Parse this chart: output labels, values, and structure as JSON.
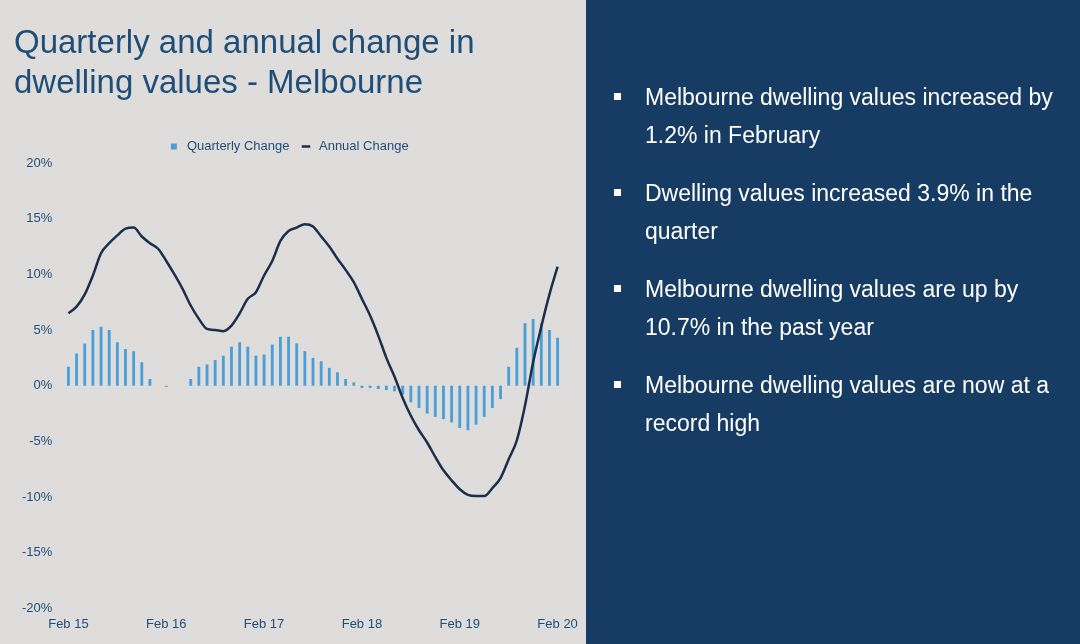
{
  "chart_data": {
    "type": "bar",
    "title": "Quarterly and annual change in dwelling values - Melbourne",
    "categories": [
      "Feb 15",
      null,
      null,
      null,
      null,
      null,
      null,
      null,
      null,
      null,
      null,
      null,
      "Feb 16",
      null,
      null,
      null,
      null,
      null,
      null,
      null,
      null,
      null,
      null,
      null,
      "Feb 17",
      null,
      null,
      null,
      null,
      null,
      null,
      null,
      null,
      null,
      null,
      null,
      "Feb 18",
      null,
      null,
      null,
      null,
      null,
      null,
      null,
      null,
      null,
      null,
      null,
      "Feb 19",
      null,
      null,
      null,
      null,
      null,
      null,
      null,
      null,
      null,
      null,
      null,
      "Feb 20"
    ],
    "series": [
      {
        "name": "Quarterly Change",
        "color": "#4a9fd8",
        "values": [
          1.7,
          2.9,
          3.8,
          5.0,
          5.3,
          5.0,
          3.9,
          3.3,
          3.1,
          2.1,
          0.6,
          0,
          -0.1,
          0,
          0,
          0.6,
          1.7,
          1.9,
          2.3,
          2.7,
          3.5,
          3.9,
          3.5,
          2.7,
          2.8,
          3.7,
          4.4,
          4.4,
          3.8,
          3.1,
          2.5,
          2.2,
          1.6,
          1.2,
          0.6,
          0.3,
          -0.2,
          -0.2,
          -0.3,
          -0.4,
          -0.5,
          -0.8,
          -1.5,
          -2.0,
          -2.5,
          -2.8,
          -3.0,
          -3.3,
          -3.8,
          -4.0,
          -3.5,
          -2.8,
          -2.0,
          -1.2,
          1.7,
          3.4,
          5.6,
          6.0,
          5.6,
          5.0,
          4.3
        ]
      },
      {
        "name": "Annual Change",
        "type": "line",
        "color": "#1b2f4a",
        "values": [
          6.5,
          7.1,
          8.2,
          9.9,
          11.9,
          12.8,
          13.5,
          14.1,
          14.2,
          13.4,
          12.8,
          12.3,
          11.2,
          10.0,
          8.7,
          7.2,
          6.0,
          5.1,
          5.0,
          4.9,
          5.4,
          6.5,
          7.8,
          8.4,
          9.9,
          11.2,
          13.0,
          13.9,
          14.2,
          14.5,
          14.3,
          13.4,
          12.5,
          11.4,
          10.4,
          9.3,
          7.8,
          6.3,
          4.5,
          2.5,
          0.8,
          -1.1,
          -2.7,
          -4.0,
          -5.1,
          -6.4,
          -7.6,
          -8.5,
          -9.3,
          -9.8,
          -9.9,
          -9.9,
          -9.2,
          -8.3,
          -6.6,
          -4.9,
          -1.8,
          2.1,
          5.3,
          8.2,
          10.7
        ]
      }
    ],
    "ylim": [
      -20,
      20
    ],
    "yticks": [
      {
        "value": -20,
        "label": "-20%"
      },
      {
        "value": -15,
        "label": "-15%"
      },
      {
        "value": -10,
        "label": "-10%"
      },
      {
        "value": -5,
        "label": "-5%"
      },
      {
        "value": 0,
        "label": "0%"
      },
      {
        "value": 5,
        "label": "5%"
      },
      {
        "value": 10,
        "label": "10%"
      },
      {
        "value": 15,
        "label": "15%"
      },
      {
        "value": 20,
        "label": "20%"
      }
    ],
    "grid": false,
    "legend": "top",
    "marker": "none",
    "annotations": [
      "Melbourne dwelling values increased by 1.2% in February",
      "Dwelling values increased 3.9% in the quarter",
      "Melbourne dwelling values are up by 10.7% in the past year",
      "Melbourne dwelling values are now at a record high"
    ]
  }
}
